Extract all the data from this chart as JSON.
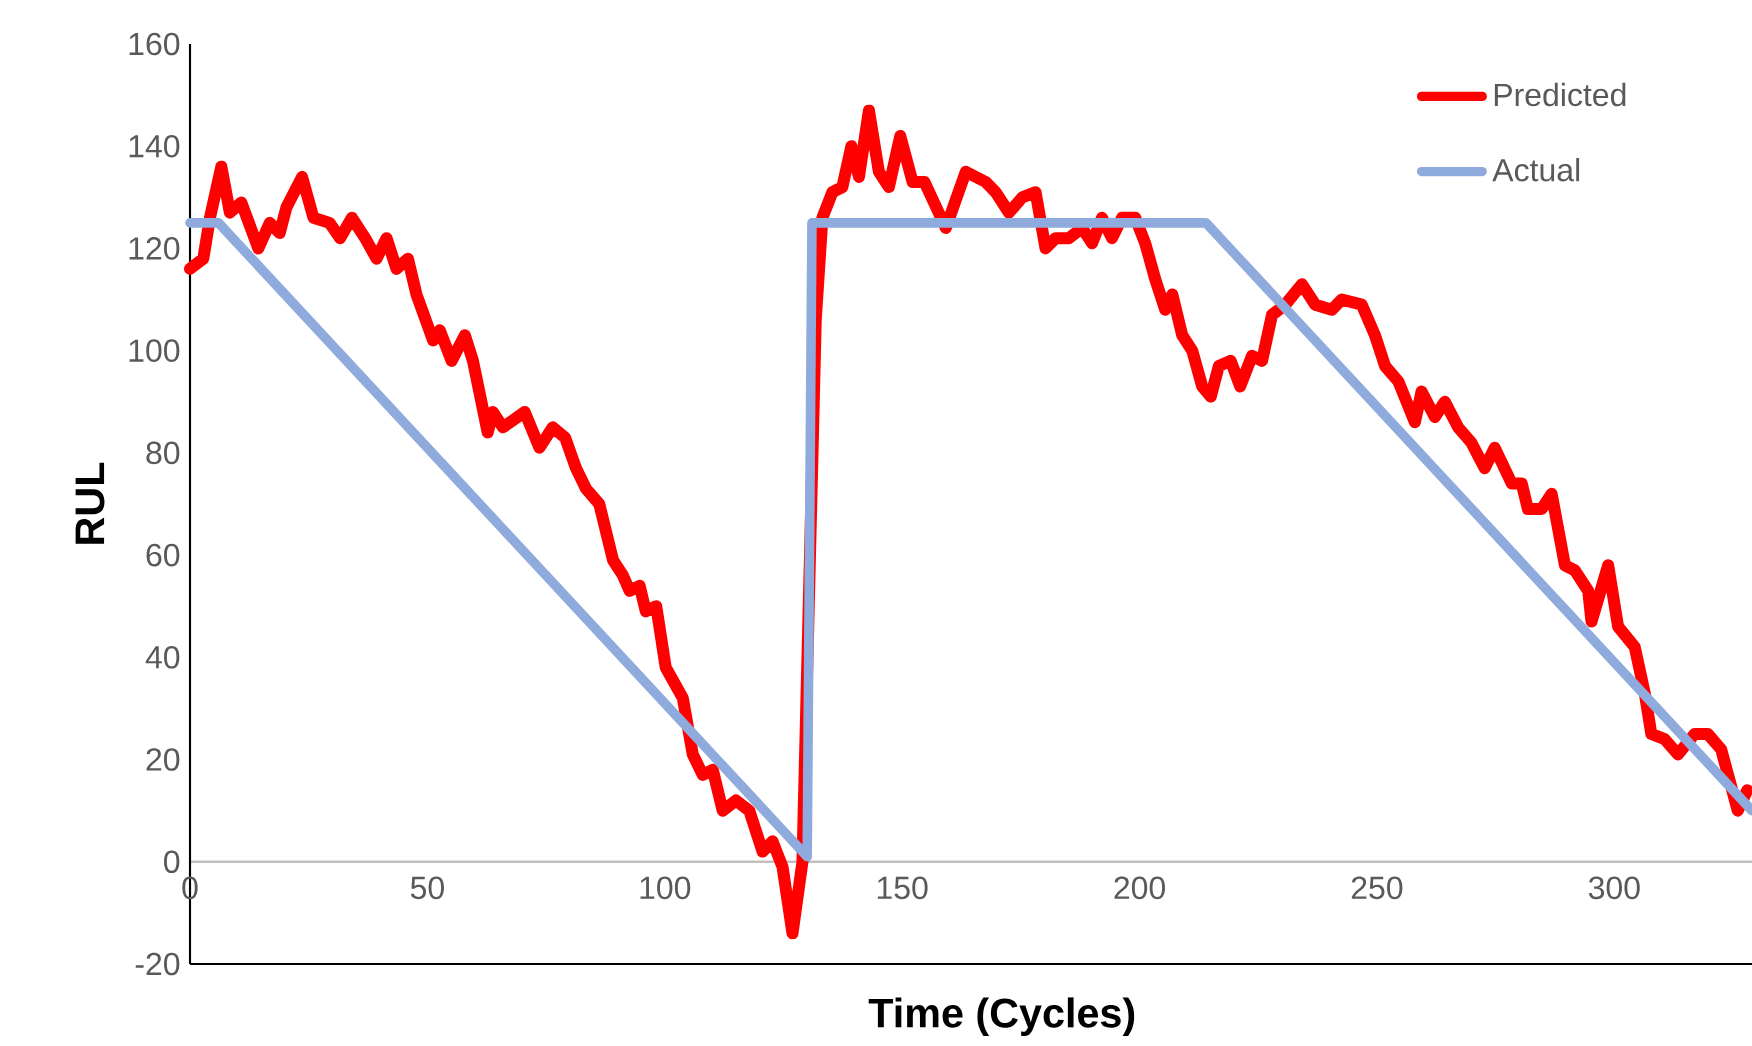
{
  "chart_data": {
    "type": "line",
    "xlabel": "Time (Cycles)",
    "ylabel": "RUL",
    "xlim": [
      0,
      329
    ],
    "ylim": [
      -20,
      160
    ],
    "xticks": [
      0,
      50,
      100,
      150,
      200,
      250,
      300
    ],
    "yticks": [
      -20,
      0,
      20,
      40,
      60,
      80,
      100,
      120,
      140,
      160
    ],
    "legend": "top right",
    "marker": "none",
    "line_style": "solid",
    "grid": false,
    "series": [
      {
        "name": "Predicted",
        "color": "#ff0000",
        "x": [
          0,
          2.8,
          4.2,
          6.6,
          8.4,
          10.8,
          14.4,
          16.8,
          18.9,
          20.3,
          23.6,
          26,
          29.4,
          31.6,
          34.1,
          36.9,
          39.3,
          41.4,
          43.5,
          45.9,
          47.7,
          51.2,
          52.6,
          55.1,
          57.9,
          59.6,
          62.7,
          63.8,
          65.9,
          70.5,
          73.6,
          76.4,
          79,
          81.3,
          83.4,
          86.2,
          89.1,
          91.2,
          92.6,
          94.7,
          96,
          98.2,
          100.2,
          103.8,
          105.9,
          108,
          110.1,
          112.2,
          115,
          117.8,
          120.6,
          122.7,
          124.8,
          126.9,
          129,
          131.8,
          133.2,
          135.3,
          137.4,
          139.3,
          140.9,
          143,
          145.1,
          147.2,
          149.6,
          152.2,
          154.7,
          159.2,
          163.4,
          167.6,
          169.7,
          172.5,
          175.3,
          178.1,
          180.2,
          182.3,
          185.1,
          187.9,
          190,
          192.1,
          194.2,
          196.3,
          199.1,
          201.2,
          203.3,
          205.4,
          206.9,
          209,
          211.1,
          213.2,
          215,
          216.7,
          219.2,
          221.2,
          223.7,
          225.8,
          227.9,
          230.7,
          234.2,
          237,
          240.5,
          242.6,
          246.8,
          249.6,
          251.7,
          254.5,
          258,
          259.4,
          262.2,
          264.3,
          267.1,
          269.9,
          272.7,
          274.8,
          278.4,
          280.5,
          281.8,
          284.7,
          286.8,
          289.6,
          291.7,
          294.5,
          295.2,
          298.7,
          300.8,
          304.3,
          306.4,
          307.8,
          310.6,
          313.4,
          316.9,
          319.7,
          322.5,
          326,
          328
        ],
        "values": [
          116,
          118,
          126,
          136,
          127,
          129,
          120,
          125,
          123,
          128,
          134,
          126,
          125,
          122,
          126,
          122,
          118,
          122,
          116,
          118,
          111,
          102,
          104,
          98,
          103,
          98,
          84,
          88,
          85,
          88,
          81,
          85,
          83,
          77,
          73,
          70,
          59,
          56,
          53,
          54,
          49,
          50,
          38,
          32,
          21,
          17,
          18,
          10,
          12,
          10,
          2,
          4,
          -1,
          -14,
          0,
          106,
          126,
          131,
          132,
          140,
          134,
          147,
          135,
          132,
          142,
          133,
          133,
          124,
          135,
          133,
          131,
          127,
          130,
          131,
          120,
          122,
          122,
          124,
          121,
          126,
          122,
          126,
          126,
          121,
          114,
          108,
          111,
          103,
          100,
          93,
          91,
          97,
          98,
          93,
          99,
          98,
          107,
          109,
          113,
          109,
          108,
          110,
          109,
          103,
          97,
          94,
          86,
          92,
          87,
          90,
          85,
          82,
          77,
          81,
          74,
          74,
          69,
          69,
          72,
          58,
          57,
          53,
          47,
          58,
          46,
          42,
          33,
          25,
          24,
          21,
          25,
          25,
          22,
          10,
          14
        ]
      },
      {
        "name": "Actual",
        "color": "#8faadc",
        "x": [
          0,
          6,
          130,
          131,
          214,
          329
        ],
        "values": [
          125,
          125,
          1,
          125,
          125,
          10
        ]
      }
    ]
  }
}
